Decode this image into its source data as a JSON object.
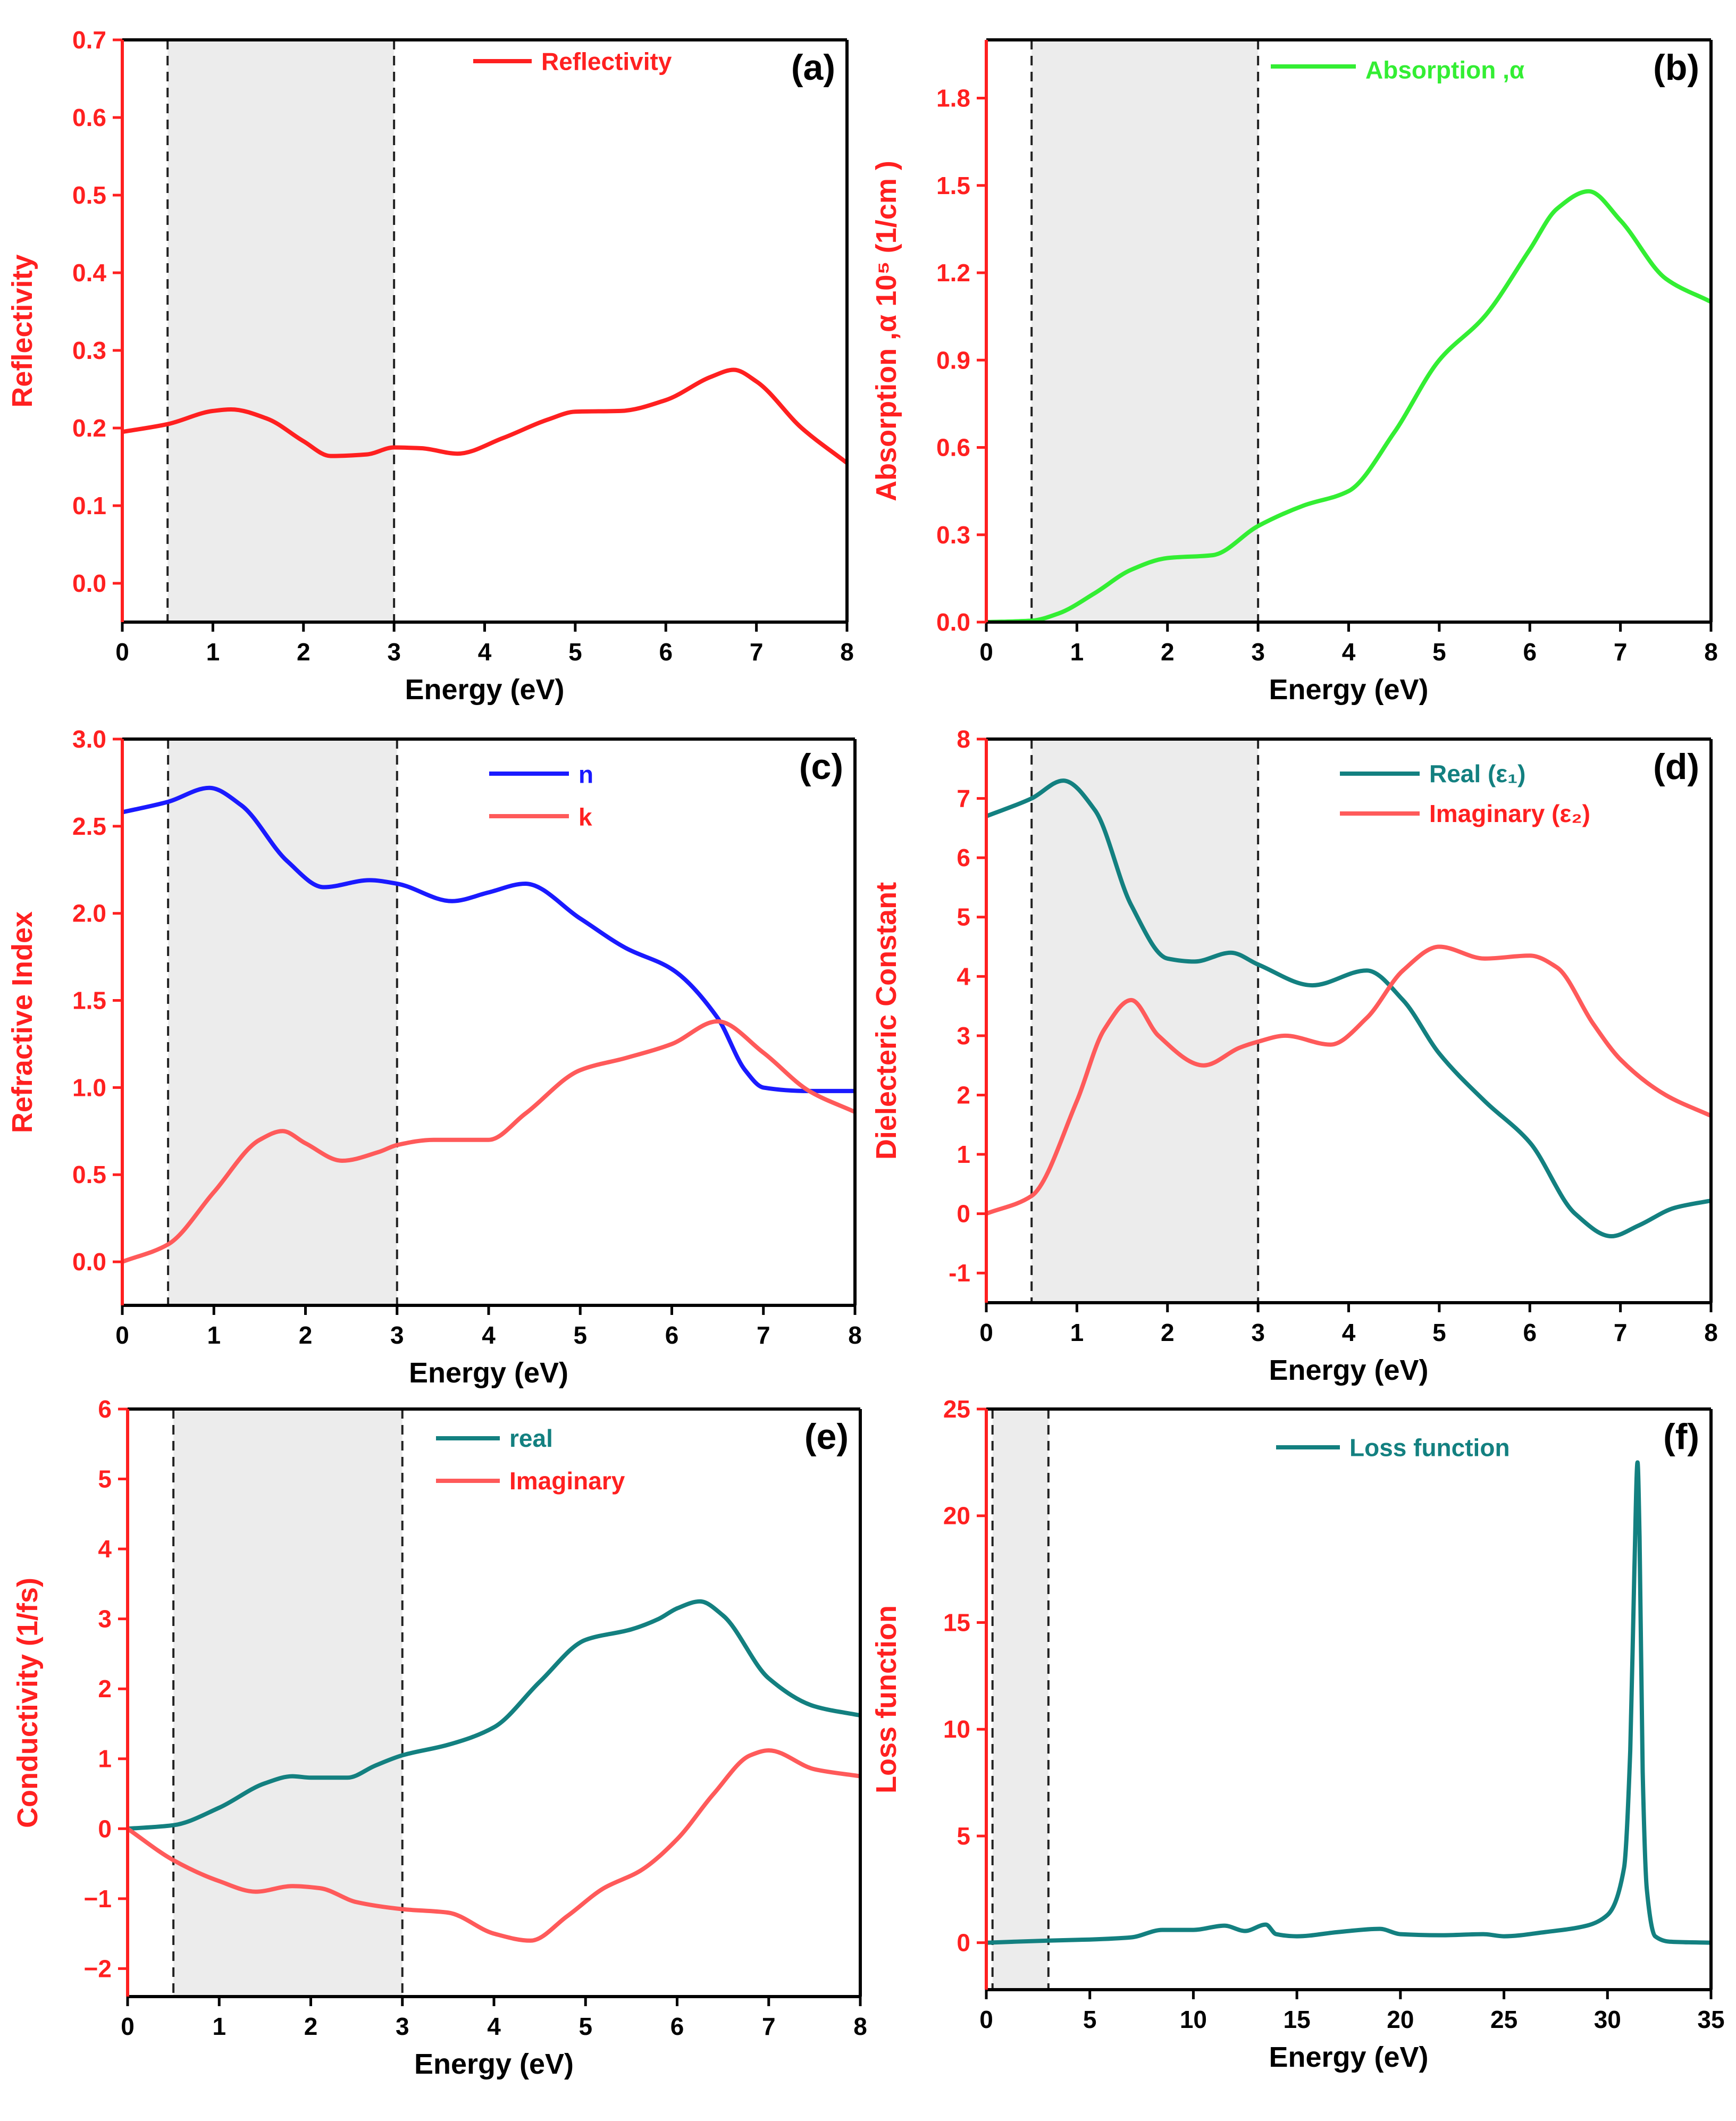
{
  "colors": {
    "red": "#ff2020",
    "light_red": "#ff5a5a",
    "green": "#33ee33",
    "blue": "#1a1aff",
    "teal": "#138080",
    "shade": "#ececec",
    "axis_black": "#000000"
  },
  "chart_data": [
    {
      "panel": "a",
      "panel_label": "(a)",
      "type": "line",
      "xlabel": "Energy (eV)",
      "ylabel": "Reflectivity",
      "xlim": [
        0,
        8
      ],
      "ylim": [
        -0.05,
        0.7
      ],
      "xticks": [
        0,
        1,
        2,
        3,
        4,
        5,
        6,
        7,
        8
      ],
      "yticks": [
        0.0,
        0.1,
        0.2,
        0.3,
        0.4,
        0.5,
        0.6,
        0.7
      ],
      "ytick_labels": [
        "0.0",
        "0.1",
        "0.2",
        "0.3",
        "0.4",
        "0.5",
        "0.6",
        "0.7"
      ],
      "shaded_region": [
        0.5,
        3.0
      ],
      "legend_position": "top-center",
      "series": [
        {
          "name": "Reflectivity",
          "color": "#ff2020",
          "x": [
            0,
            0.5,
            1.0,
            1.2,
            1.6,
            2.0,
            2.3,
            2.7,
            3.0,
            3.3,
            3.7,
            4.2,
            4.7,
            5.0,
            5.5,
            6.0,
            6.5,
            6.75,
            7.0,
            7.5,
            8.0
          ],
          "y": [
            0.195,
            0.205,
            0.222,
            0.224,
            0.212,
            0.183,
            0.164,
            0.166,
            0.175,
            0.174,
            0.167,
            0.187,
            0.211,
            0.221,
            0.222,
            0.236,
            0.266,
            0.275,
            0.26,
            0.2,
            0.155
          ]
        }
      ]
    },
    {
      "panel": "b",
      "panel_label": "(b)",
      "type": "line",
      "xlabel": "Energy (eV)",
      "ylabel": "Absorption ,α 10⁵ (1/cm )",
      "xlim": [
        0,
        8
      ],
      "ylim": [
        0,
        2.0
      ],
      "xticks": [
        0,
        1,
        2,
        3,
        4,
        5,
        6,
        7,
        8
      ],
      "yticks": [
        0.0,
        0.3,
        0.6,
        0.9,
        1.2,
        1.5,
        1.8
      ],
      "ytick_labels": [
        "0.0",
        "0.3",
        "0.6",
        "0.9",
        "1.2",
        "1.5",
        "1.8"
      ],
      "shaded_region": [
        0.5,
        3.0
      ],
      "legend_position": "top-right",
      "series": [
        {
          "name": "Absorption ,α",
          "color": "#33ee33",
          "x": [
            0,
            0.5,
            0.8,
            1.2,
            1.6,
            2.0,
            2.5,
            3.0,
            3.5,
            4.0,
            4.5,
            5.0,
            5.5,
            6.0,
            6.3,
            6.65,
            7.0,
            7.5,
            8.0
          ],
          "y": [
            0,
            0.005,
            0.03,
            0.1,
            0.18,
            0.22,
            0.23,
            0.33,
            0.4,
            0.45,
            0.65,
            0.9,
            1.05,
            1.28,
            1.42,
            1.48,
            1.38,
            1.18,
            1.1
          ]
        }
      ]
    },
    {
      "panel": "c",
      "panel_label": "(c)",
      "type": "line",
      "xlabel": "Energy (eV)",
      "ylabel": "Refractive Index",
      "xlim": [
        0,
        8
      ],
      "ylim": [
        -0.25,
        3.0
      ],
      "xticks": [
        0,
        1,
        2,
        3,
        4,
        5,
        6,
        7,
        8
      ],
      "yticks": [
        0.0,
        0.5,
        1.0,
        1.5,
        2.0,
        2.5,
        3.0
      ],
      "ytick_labels": [
        "0.0",
        "0.5",
        "1.0",
        "1.5",
        "2.0",
        "2.5",
        "3.0"
      ],
      "shaded_region": [
        0.5,
        3.0
      ],
      "legend_position": "top-right",
      "series": [
        {
          "name": "n",
          "color": "#1a1aff",
          "x": [
            0,
            0.5,
            0.95,
            1.3,
            1.8,
            2.2,
            2.7,
            3.0,
            3.6,
            4.0,
            4.4,
            5.0,
            5.5,
            6.0,
            6.5,
            6.8,
            7.0,
            7.5,
            8.0
          ],
          "y": [
            2.58,
            2.64,
            2.72,
            2.62,
            2.3,
            2.15,
            2.19,
            2.17,
            2.07,
            2.12,
            2.17,
            1.97,
            1.8,
            1.68,
            1.4,
            1.1,
            1.0,
            0.98,
            0.98
          ]
        },
        {
          "name": "k",
          "color": "#ff5a5a",
          "x": [
            0,
            0.5,
            1.0,
            1.5,
            1.75,
            2.0,
            2.4,
            2.8,
            3.0,
            3.4,
            4.0,
            4.4,
            5.0,
            5.5,
            6.0,
            6.5,
            7.0,
            7.5,
            8.0
          ],
          "y": [
            0.0,
            0.1,
            0.4,
            0.7,
            0.75,
            0.68,
            0.58,
            0.63,
            0.67,
            0.7,
            0.7,
            0.85,
            1.1,
            1.17,
            1.25,
            1.38,
            1.2,
            0.98,
            0.86
          ]
        }
      ]
    },
    {
      "panel": "d",
      "panel_label": "(d)",
      "type": "line",
      "xlabel": "Energy (eV)",
      "ylabel": "Dielecteric Constant",
      "xlim": [
        0,
        8
      ],
      "ylim": [
        -1.5,
        8
      ],
      "xticks": [
        0,
        1,
        2,
        3,
        4,
        5,
        6,
        7,
        8
      ],
      "yticks": [
        -1,
        0,
        1,
        2,
        3,
        4,
        5,
        6,
        7,
        8
      ],
      "ytick_labels": [
        "-1",
        "0",
        "1",
        "2",
        "3",
        "4",
        "5",
        "6",
        "7",
        "8"
      ],
      "shaded_region": [
        0.5,
        3.0
      ],
      "legend_position": "top-center",
      "series": [
        {
          "name": "Real (ε₁)",
          "color": "#138080",
          "x": [
            0,
            0.5,
            0.85,
            1.2,
            1.6,
            2.0,
            2.3,
            2.7,
            3.0,
            3.6,
            4.2,
            4.6,
            5.0,
            5.5,
            6.0,
            6.5,
            6.9,
            7.2,
            7.6,
            8.0
          ],
          "y": [
            6.7,
            7.0,
            7.3,
            6.8,
            5.2,
            4.3,
            4.25,
            4.4,
            4.2,
            3.85,
            4.1,
            3.6,
            2.7,
            1.9,
            1.2,
            0.0,
            -0.38,
            -0.2,
            0.1,
            0.22
          ]
        },
        {
          "name": "Imaginary (ε₂)",
          "color": "#ff5a5a",
          "x": [
            0,
            0.5,
            1.0,
            1.3,
            1.6,
            1.9,
            2.4,
            2.8,
            3.0,
            3.3,
            3.8,
            4.2,
            4.6,
            5.0,
            5.5,
            6.0,
            6.3,
            6.7,
            7.0,
            7.5,
            8.0
          ],
          "y": [
            0.0,
            0.3,
            1.9,
            3.1,
            3.6,
            3.0,
            2.5,
            2.8,
            2.9,
            3.0,
            2.85,
            3.3,
            4.1,
            4.5,
            4.3,
            4.35,
            4.15,
            3.2,
            2.6,
            2.0,
            1.65
          ]
        }
      ]
    },
    {
      "panel": "e",
      "panel_label": "(e)",
      "type": "line",
      "xlabel": "Energy (eV)",
      "ylabel": "Conductivity (1/fs)",
      "xlim": [
        0,
        8
      ],
      "ylim": [
        -2.4,
        6
      ],
      "xticks": [
        0,
        1,
        2,
        3,
        4,
        5,
        6,
        7,
        8
      ],
      "yticks": [
        -2,
        -1,
        0,
        1,
        2,
        3,
        4,
        5,
        6
      ],
      "ytick_labels": [
        "−2",
        "−1",
        "0",
        "1",
        "2",
        "3",
        "4",
        "5",
        "6"
      ],
      "shaded_region": [
        0.5,
        3.0
      ],
      "legend_position": "top-center",
      "series": [
        {
          "name": "real",
          "color": "#138080",
          "x": [
            0,
            0.5,
            1.0,
            1.5,
            1.8,
            2.0,
            2.4,
            2.7,
            3.0,
            3.5,
            4.0,
            4.5,
            5.0,
            5.5,
            5.8,
            6.0,
            6.25,
            6.5,
            7.0,
            7.5,
            8.0
          ],
          "y": [
            0.0,
            0.05,
            0.3,
            0.65,
            0.75,
            0.73,
            0.73,
            0.9,
            1.05,
            1.2,
            1.45,
            2.1,
            2.7,
            2.85,
            3.0,
            3.15,
            3.25,
            3.05,
            2.15,
            1.75,
            1.62
          ]
        },
        {
          "name": "Imaginary",
          "color": "#ff5a5a",
          "x": [
            0,
            0.5,
            1.0,
            1.4,
            1.8,
            2.1,
            2.5,
            3.0,
            3.5,
            4.0,
            4.4,
            4.8,
            5.2,
            5.6,
            6.0,
            6.4,
            6.8,
            7.0,
            7.5,
            8.0
          ],
          "y": [
            0.0,
            -0.45,
            -0.75,
            -0.9,
            -0.82,
            -0.85,
            -1.05,
            -1.15,
            -1.2,
            -1.5,
            -1.6,
            -1.25,
            -0.85,
            -0.6,
            -0.15,
            0.5,
            1.05,
            1.12,
            0.85,
            0.75
          ]
        }
      ]
    },
    {
      "panel": "f",
      "panel_label": "(f)",
      "type": "line",
      "xlabel": "Energy (eV)",
      "ylabel": "Loss function",
      "xlim": [
        0,
        35
      ],
      "ylim": [
        -2.2,
        25
      ],
      "xticks": [
        0,
        5,
        10,
        15,
        20,
        25,
        30,
        35
      ],
      "yticks": [
        0,
        5,
        10,
        15,
        20,
        25
      ],
      "ytick_labels": [
        "0",
        "5",
        "10",
        "15",
        "20",
        "25"
      ],
      "shaded_region": [
        0.3,
        3.0
      ],
      "legend_position": "top-center",
      "series": [
        {
          "name": "Loss function",
          "color": "#138080",
          "x": [
            0,
            3,
            5,
            7,
            8.5,
            10,
            11.5,
            12.5,
            13.5,
            14,
            15,
            17,
            19,
            20,
            22,
            24,
            25,
            27,
            29,
            30,
            30.8,
            31.1,
            31.3,
            31.45,
            31.55,
            31.7,
            31.9,
            32.3,
            33,
            35
          ],
          "y": [
            0,
            0.1,
            0.15,
            0.25,
            0.6,
            0.6,
            0.8,
            0.55,
            0.85,
            0.4,
            0.3,
            0.5,
            0.65,
            0.4,
            0.35,
            0.4,
            0.3,
            0.5,
            0.8,
            1.3,
            3.5,
            9.0,
            17.5,
            22.5,
            19.0,
            8.0,
            2.5,
            0.3,
            0.05,
            0.0
          ]
        }
      ]
    }
  ]
}
